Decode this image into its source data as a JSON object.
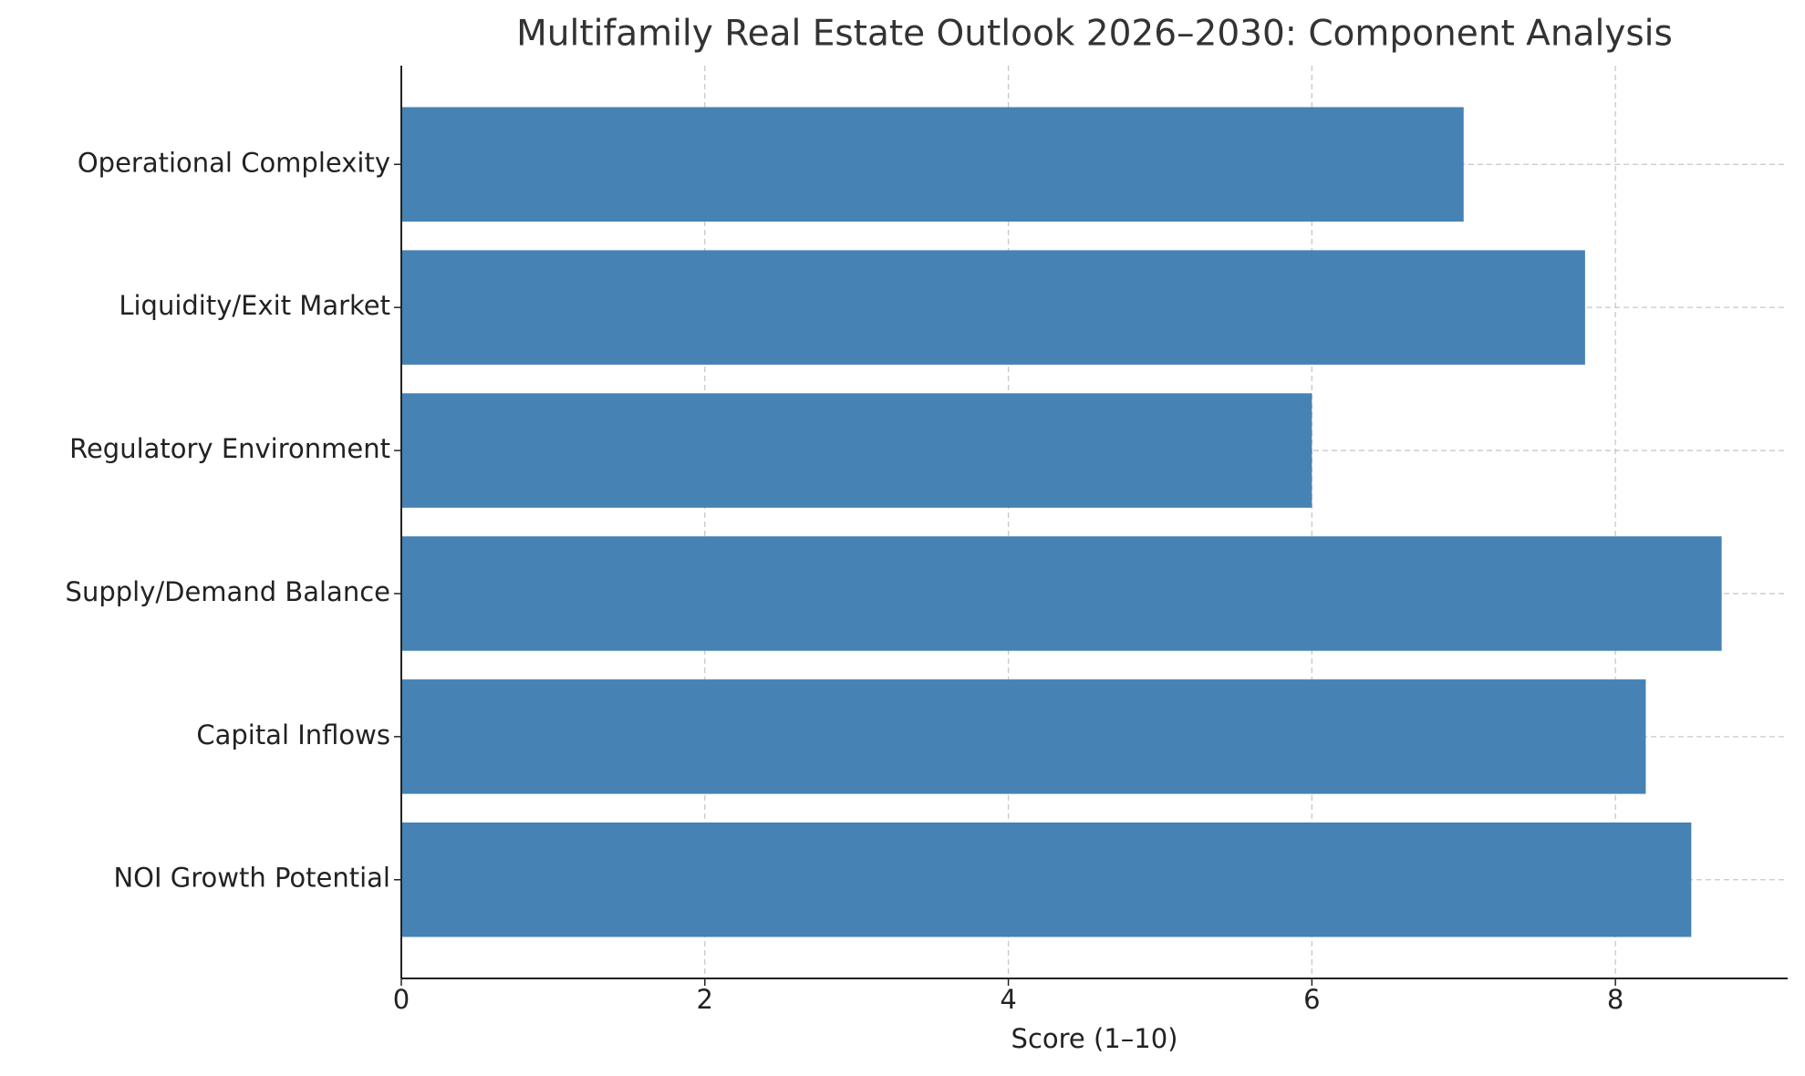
{
  "chart_data": {
    "type": "barh",
    "title": "Multifamily Real Estate Outlook 2026–2030: Component Analysis",
    "xlabel": "Score (1–10)",
    "categories": [
      "NOI Growth Potential",
      "Capital Inflows",
      "Supply/Demand Balance",
      "Regulatory Environment",
      "Liquidity/Exit Market",
      "Operational Complexity"
    ],
    "values": [
      8.5,
      8.2,
      8.7,
      6.0,
      7.8,
      7.0
    ],
    "color": "#4682b4",
    "xlim": [
      0,
      9.135
    ],
    "xticks": [
      0,
      2,
      4,
      6,
      8
    ],
    "grid": true
  }
}
